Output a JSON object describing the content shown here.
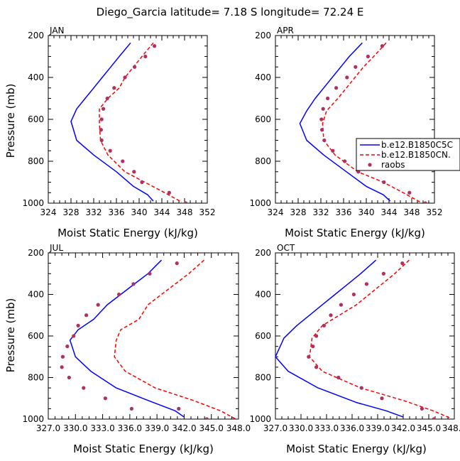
{
  "figure_title": "Diego_Garcia   latitude= 7.18 S longitude= 72.24 E",
  "colors": {
    "model1": "#0000ff",
    "model2": "#ff0000",
    "obs": "#b03060",
    "axis": "#000000"
  },
  "legend": {
    "entries": [
      "b.e12.B1850C5C",
      "b.e12.B1850CN.",
      "raobs"
    ],
    "placement": "right of APR panel"
  },
  "chart_data": [
    {
      "type": "line",
      "title": "JAN",
      "xlabel": "Moist Static Energy (kJ/kg)",
      "ylabel": "Pressure (mb)",
      "xlim": [
        324,
        352
      ],
      "ylim": [
        1000,
        200
      ],
      "xticks": [
        "324",
        "328",
        "332",
        "336",
        "340",
        "344",
        "348",
        "352"
      ],
      "yticks": [
        "200",
        "400",
        "600",
        "800",
        "1000"
      ],
      "series": [
        {
          "name": "b.e12.B1850C5C",
          "style": "solid",
          "x": [
            338.5,
            336.5,
            335,
            333.5,
            332,
            330.5,
            329,
            328,
            329,
            332,
            336,
            339,
            341.5,
            342.5
          ],
          "y": [
            235,
            300,
            350,
            400,
            450,
            500,
            550,
            610,
            700,
            770,
            850,
            920,
            960,
            990
          ]
        },
        {
          "name": "b.e12.B1850CN.",
          "style": "dashed",
          "x": [
            342.5,
            340.5,
            339,
            337.5,
            336.5,
            334.5,
            333,
            333,
            333.2,
            334.5,
            337.5,
            341,
            344.5,
            347.5
          ],
          "y": [
            235,
            300,
            350,
            400,
            450,
            500,
            550,
            620,
            700,
            770,
            850,
            900,
            950,
            995
          ]
        },
        {
          "name": "raobs",
          "style": "dots",
          "x": [
            342.7,
            341.1,
            339.2,
            337.5,
            335.6,
            334.4,
            333.7,
            333.4,
            333.3,
            333.4,
            334.9,
            337.1,
            339.1,
            340.5,
            345.3,
            348.2
          ],
          "y": [
            250,
            300,
            350,
            400,
            450,
            500,
            550,
            600,
            650,
            700,
            750,
            800,
            850,
            900,
            950,
            1000
          ]
        }
      ]
    },
    {
      "type": "line",
      "title": "APR",
      "xlabel": "Moist Static Energy (kJ/kg)",
      "ylabel": "",
      "xlim": [
        324,
        352
      ],
      "ylim": [
        1000,
        200
      ],
      "xticks": [
        "324",
        "328",
        "332",
        "336",
        "340",
        "344",
        "348",
        "352"
      ],
      "yticks": [
        "200",
        "400",
        "600",
        "800",
        "1000"
      ],
      "series": [
        {
          "name": "b.e12.B1850C5C",
          "style": "solid",
          "x": [
            339.3,
            337,
            335.5,
            334,
            332.5,
            331,
            329.5,
            328.3,
            329.5,
            332.5,
            336.5,
            340,
            343,
            344.2
          ],
          "y": [
            235,
            300,
            350,
            400,
            450,
            500,
            560,
            620,
            700,
            770,
            850,
            920,
            960,
            990
          ]
        },
        {
          "name": "b.e12.B1850CN.",
          "style": "dashed",
          "x": [
            343.5,
            341.3,
            339.5,
            338,
            336.5,
            335,
            333,
            332.3,
            332.5,
            334.5,
            338.5,
            343,
            346.5,
            349.5
          ],
          "y": [
            235,
            300,
            350,
            400,
            450,
            500,
            560,
            620,
            700,
            770,
            850,
            900,
            950,
            995
          ]
        },
        {
          "name": "raobs",
          "style": "dots",
          "x": [
            342.8,
            340.3,
            338.1,
            336.6,
            334.7,
            333.2,
            332.4,
            332.1,
            332.2,
            332.6,
            334.1,
            336.2,
            338.6,
            343.1,
            347.6,
            350.4
          ],
          "y": [
            250,
            300,
            350,
            400,
            450,
            500,
            550,
            600,
            650,
            700,
            750,
            800,
            850,
            900,
            950,
            1000
          ]
        }
      ]
    },
    {
      "type": "line",
      "title": "JUL",
      "xlabel": "Moist Static Energy (kJ/kg)",
      "ylabel": "Pressure (mb)",
      "xlim": [
        327,
        348
      ],
      "ylim": [
        1000,
        200
      ],
      "xticks": [
        "327.0",
        "330.0",
        "333.0",
        "336.0",
        "339.0",
        "342.0",
        "345.0",
        "348.0"
      ],
      "yticks": [
        "200",
        "400",
        "600",
        "800",
        "1000"
      ],
      "series": [
        {
          "name": "b.e12.B1850C5C",
          "style": "solid",
          "x": [
            339.5,
            338,
            336.5,
            335,
            333.5,
            332,
            330.3,
            329.4,
            330,
            331.7,
            334.5,
            338,
            341,
            342
          ],
          "y": [
            235,
            300,
            350,
            400,
            450,
            520,
            570,
            620,
            700,
            770,
            850,
            910,
            960,
            990
          ]
        },
        {
          "name": "b.e12.B1850CN.",
          "style": "dashed",
          "x": [
            344.2,
            342.5,
            341,
            339.5,
            338,
            337,
            335,
            334.5,
            334.3,
            335.5,
            338.8,
            343,
            346,
            347.7
          ],
          "y": [
            235,
            300,
            350,
            400,
            450,
            520,
            570,
            620,
            700,
            770,
            850,
            910,
            960,
            1000
          ]
        },
        {
          "name": "raobs",
          "style": "dots",
          "x": [
            341.2,
            338.2,
            336.4,
            334.8,
            332.5,
            331.2,
            330.3,
            329.8,
            329.1,
            328.6,
            328.5,
            329.3,
            330.9,
            333.3,
            336.2,
            341.4,
            344.5
          ],
          "y": [
            250,
            300,
            350,
            400,
            450,
            500,
            550,
            600,
            650,
            700,
            750,
            800,
            850,
            900,
            950,
            950,
            1000
          ]
        }
      ]
    },
    {
      "type": "line",
      "title": "OCT",
      "xlabel": "Moist Static Energy (kJ/kg)",
      "ylabel": "",
      "xlim": [
        327,
        348
      ],
      "ylim": [
        1000,
        200
      ],
      "xticks": [
        "327.0",
        "330.0",
        "333.0",
        "336.0",
        "339.0",
        "342.0",
        "345.0",
        "348.0"
      ],
      "yticks": [
        "200",
        "400",
        "600",
        "800",
        "1000"
      ],
      "series": [
        {
          "name": "b.e12.B1850C5C",
          "style": "solid",
          "x": [
            338.8,
            337,
            335.5,
            334,
            332.5,
            331,
            329.5,
            328,
            327,
            328.5,
            332,
            336.5,
            340,
            342
          ],
          "y": [
            235,
            300,
            350,
            400,
            450,
            500,
            550,
            610,
            700,
            770,
            850,
            920,
            960,
            990
          ]
        },
        {
          "name": "b.e12.B1850CN.",
          "style": "dashed",
          "x": [
            342.7,
            341,
            339.5,
            338,
            336.5,
            334.5,
            332.5,
            331.3,
            331,
            332.5,
            337,
            342,
            345.5,
            347.5
          ],
          "y": [
            235,
            300,
            350,
            400,
            450,
            500,
            550,
            610,
            700,
            770,
            850,
            910,
            960,
            995
          ]
        },
        {
          "name": "raobs",
          "style": "dots",
          "x": [
            341.9,
            339.7,
            337.7,
            336.2,
            334.7,
            333.5,
            332.7,
            331.8,
            331.4,
            330.9,
            331.8,
            334.4,
            337.1,
            339.5,
            344.2,
            345.6
          ],
          "y": [
            250,
            300,
            350,
            400,
            450,
            500,
            550,
            600,
            650,
            700,
            750,
            800,
            850,
            900,
            950,
            1000
          ]
        }
      ]
    }
  ]
}
